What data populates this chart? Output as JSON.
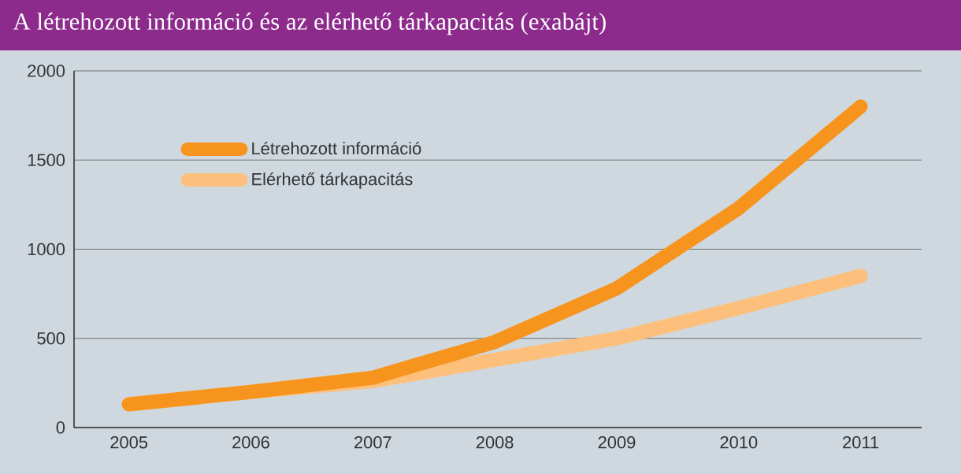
{
  "chart_data": {
    "type": "line",
    "title": "A létrehozott információ és az elérhető tárkapacitás (exabájt)",
    "categories": [
      "2005",
      "2006",
      "2007",
      "2008",
      "2009",
      "2010",
      "2011"
    ],
    "series": [
      {
        "name": "Létrehozott információ",
        "color": "#f7941d",
        "values": [
          130,
          200,
          280,
          480,
          780,
          1230,
          1800
        ]
      },
      {
        "name": "Elérhető tárkapacitás",
        "color": "#fdbf7c",
        "values": [
          130,
          200,
          260,
          380,
          500,
          670,
          850
        ]
      }
    ],
    "ylim": [
      0,
      2000
    ],
    "yticks": [
      0,
      500,
      1000,
      1500,
      2000
    ],
    "grid": "y",
    "legend": "top left",
    "marker": "none",
    "line_style": "solid"
  }
}
